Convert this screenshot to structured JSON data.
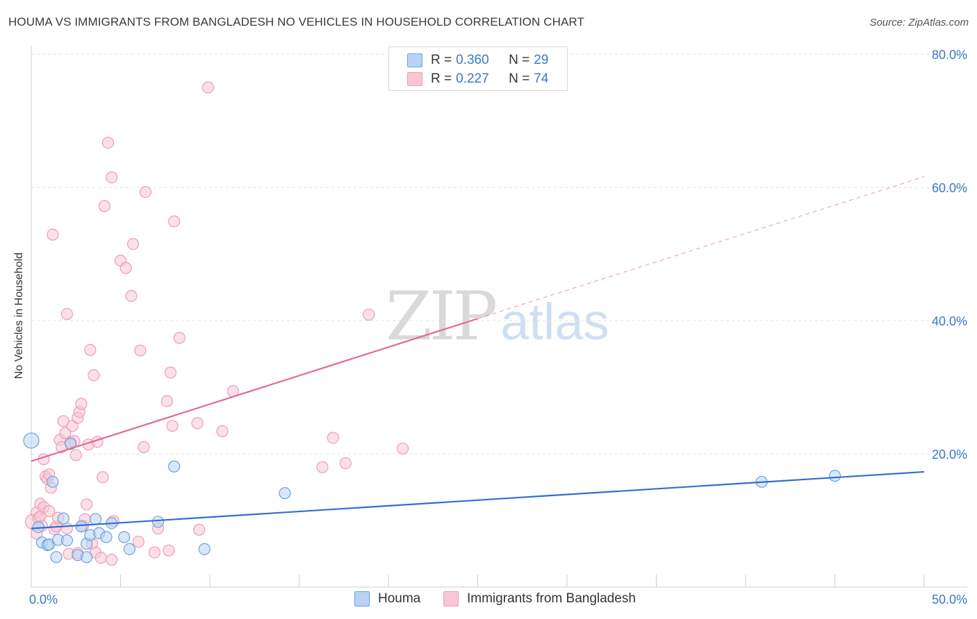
{
  "title": "HOUMA VS IMMIGRANTS FROM BANGLADESH NO VEHICLES IN HOUSEHOLD CORRELATION CHART",
  "source": "Source: ZipAtlas.com",
  "watermark": {
    "zip": "ZIP",
    "atlas": "atlas"
  },
  "colors": {
    "houma_fill": "#b9d3f3",
    "houma_stroke": "#6aa1e0",
    "houma_line": "#2f6fcf",
    "bangladesh_fill": "#f8c6d4",
    "bangladesh_stroke": "#ec9db5",
    "bangladesh_line": "#e26a92",
    "tick": "#3b78c8",
    "grid": "#e3e3e3"
  },
  "legend_top": [
    {
      "r_label": "R =",
      "r_value": "0.360",
      "n_label": "N =",
      "n_value": "29"
    },
    {
      "r_label": "R =",
      "r_value": "0.227",
      "n_label": "N =",
      "n_value": "74"
    }
  ],
  "legend_bottom": [
    {
      "label": "Houma"
    },
    {
      "label": "Immigrants from Bangladesh"
    }
  ],
  "chart_data": {
    "type": "scatter",
    "title": "HOUMA VS IMMIGRANTS FROM BANGLADESH NO VEHICLES IN HOUSEHOLD CORRELATION CHART",
    "xlabel": "",
    "ylabel": "No Vehicles in Household",
    "xlim": [
      0,
      50
    ],
    "ylim": [
      0,
      80
    ],
    "x_tick_labels": [
      "0.0%",
      "50.0%"
    ],
    "y_ticks": [
      20,
      40,
      60,
      80
    ],
    "y_tick_labels": [
      "20.0%",
      "40.0%",
      "60.0%",
      "80.0%"
    ],
    "grid": true,
    "legend_position": "top-center",
    "series": [
      {
        "name": "Houma",
        "r": 0.36,
        "n": 29,
        "trend": {
          "x0": 0,
          "y0": 8.8,
          "x1": 50,
          "y1": 17.3,
          "dashed_extension_to": null
        },
        "points": [
          {
            "x": 0.0,
            "y": 22.0,
            "big": true
          },
          {
            "x": 0.4,
            "y": 9.0
          },
          {
            "x": 0.6,
            "y": 6.7
          },
          {
            "x": 0.9,
            "y": 6.3
          },
          {
            "x": 1.0,
            "y": 6.4
          },
          {
            "x": 1.2,
            "y": 15.8
          },
          {
            "x": 1.4,
            "y": 4.5
          },
          {
            "x": 1.5,
            "y": 7.1
          },
          {
            "x": 1.8,
            "y": 10.3
          },
          {
            "x": 2.0,
            "y": 7.0
          },
          {
            "x": 2.2,
            "y": 21.5
          },
          {
            "x": 2.6,
            "y": 4.8
          },
          {
            "x": 2.8,
            "y": 9.1
          },
          {
            "x": 3.1,
            "y": 6.5
          },
          {
            "x": 3.1,
            "y": 4.5
          },
          {
            "x": 3.3,
            "y": 7.8
          },
          {
            "x": 3.6,
            "y": 10.2
          },
          {
            "x": 3.8,
            "y": 8.1
          },
          {
            "x": 4.2,
            "y": 7.5
          },
          {
            "x": 4.5,
            "y": 9.6
          },
          {
            "x": 5.2,
            "y": 7.5
          },
          {
            "x": 5.5,
            "y": 5.7
          },
          {
            "x": 7.1,
            "y": 9.8
          },
          {
            "x": 8.0,
            "y": 18.1
          },
          {
            "x": 9.7,
            "y": 5.7
          },
          {
            "x": 14.2,
            "y": 14.1
          },
          {
            "x": 40.9,
            "y": 15.8
          },
          {
            "x": 45.0,
            "y": 16.7
          }
        ]
      },
      {
        "name": "Immigrants from Bangladesh",
        "r": 0.227,
        "n": 74,
        "trend": {
          "x0": 0,
          "y0": 18.9,
          "x1": 25,
          "y1": 40.3,
          "dashed_extension_to": {
            "x": 50,
            "y": 61.6
          }
        },
        "points": [
          {
            "x": 0.1,
            "y": 9.8,
            "big": true
          },
          {
            "x": 0.3,
            "y": 11.2
          },
          {
            "x": 0.3,
            "y": 8.0
          },
          {
            "x": 0.4,
            "y": 10.3
          },
          {
            "x": 0.5,
            "y": 12.5
          },
          {
            "x": 0.5,
            "y": 10.6
          },
          {
            "x": 0.6,
            "y": 9.2
          },
          {
            "x": 0.7,
            "y": 19.2
          },
          {
            "x": 0.7,
            "y": 12.0
          },
          {
            "x": 0.8,
            "y": 16.6
          },
          {
            "x": 0.9,
            "y": 16.2
          },
          {
            "x": 1.0,
            "y": 11.4
          },
          {
            "x": 1.0,
            "y": 16.9
          },
          {
            "x": 1.1,
            "y": 14.9
          },
          {
            "x": 1.2,
            "y": 52.9
          },
          {
            "x": 1.3,
            "y": 8.7
          },
          {
            "x": 1.4,
            "y": 9.1
          },
          {
            "x": 1.5,
            "y": 10.4
          },
          {
            "x": 1.6,
            "y": 22.1
          },
          {
            "x": 1.7,
            "y": 21.0
          },
          {
            "x": 1.8,
            "y": 24.9
          },
          {
            "x": 1.9,
            "y": 23.1
          },
          {
            "x": 2.0,
            "y": 8.8
          },
          {
            "x": 2.0,
            "y": 41.0
          },
          {
            "x": 2.1,
            "y": 5.0
          },
          {
            "x": 2.2,
            "y": 21.8
          },
          {
            "x": 2.3,
            "y": 24.2
          },
          {
            "x": 2.4,
            "y": 21.9
          },
          {
            "x": 2.5,
            "y": 19.8
          },
          {
            "x": 2.6,
            "y": 5.1
          },
          {
            "x": 2.6,
            "y": 25.4
          },
          {
            "x": 2.7,
            "y": 26.3
          },
          {
            "x": 2.8,
            "y": 27.5
          },
          {
            "x": 2.9,
            "y": 9.2
          },
          {
            "x": 3.0,
            "y": 10.2
          },
          {
            "x": 3.1,
            "y": 12.4
          },
          {
            "x": 3.2,
            "y": 21.4
          },
          {
            "x": 3.3,
            "y": 35.6
          },
          {
            "x": 3.4,
            "y": 6.5
          },
          {
            "x": 3.5,
            "y": 31.8
          },
          {
            "x": 3.6,
            "y": 5.2
          },
          {
            "x": 3.7,
            "y": 21.8
          },
          {
            "x": 3.9,
            "y": 4.4
          },
          {
            "x": 4.0,
            "y": 16.5
          },
          {
            "x": 4.1,
            "y": 57.2
          },
          {
            "x": 4.3,
            "y": 66.7
          },
          {
            "x": 4.5,
            "y": 4.1
          },
          {
            "x": 4.5,
            "y": 61.5
          },
          {
            "x": 4.6,
            "y": 9.9
          },
          {
            "x": 5.0,
            "y": 49.0
          },
          {
            "x": 5.3,
            "y": 47.9
          },
          {
            "x": 5.6,
            "y": 43.7
          },
          {
            "x": 5.7,
            "y": 51.5
          },
          {
            "x": 6.0,
            "y": 6.8
          },
          {
            "x": 6.1,
            "y": 35.5
          },
          {
            "x": 6.3,
            "y": 21.0
          },
          {
            "x": 6.4,
            "y": 59.3
          },
          {
            "x": 6.9,
            "y": 5.2
          },
          {
            "x": 7.1,
            "y": 8.8
          },
          {
            "x": 7.6,
            "y": 27.9
          },
          {
            "x": 7.7,
            "y": 5.5
          },
          {
            "x": 7.8,
            "y": 32.2
          },
          {
            "x": 7.9,
            "y": 24.2
          },
          {
            "x": 8.0,
            "y": 54.9
          },
          {
            "x": 8.3,
            "y": 37.4
          },
          {
            "x": 9.3,
            "y": 24.6
          },
          {
            "x": 9.4,
            "y": 8.6
          },
          {
            "x": 9.9,
            "y": 75.0
          },
          {
            "x": 10.7,
            "y": 23.4
          },
          {
            "x": 11.3,
            "y": 29.4
          },
          {
            "x": 16.3,
            "y": 18.0
          },
          {
            "x": 16.9,
            "y": 22.4
          },
          {
            "x": 17.6,
            "y": 18.6
          },
          {
            "x": 18.9,
            "y": 40.9
          },
          {
            "x": 20.8,
            "y": 20.8
          }
        ]
      }
    ]
  }
}
